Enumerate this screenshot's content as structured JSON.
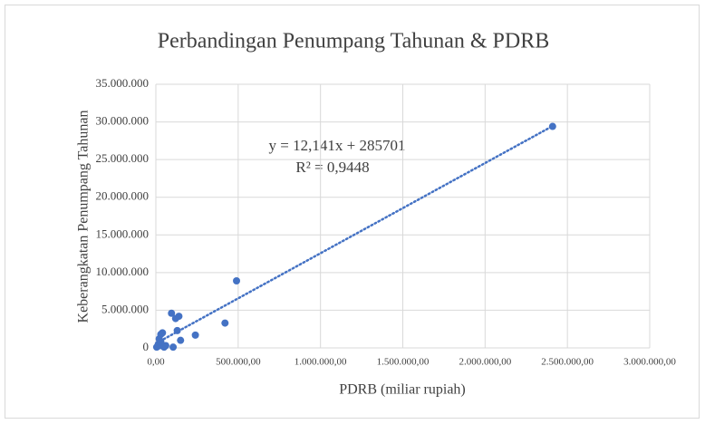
{
  "chart_data": {
    "type": "scatter",
    "title": "Perbandingan Penumpang Tahunan & PDRB",
    "x_label": "PDRB (miliar rupiah)",
    "y_label": "Keberangkatan Penumpang Tahunan",
    "color": "#4472c4",
    "grid": true,
    "trendline": {
      "equation": "y = 12,141x + 285701",
      "r_squared": "R² = 0,9448"
    },
    "xlim": [
      0,
      3000000
    ],
    "ylim": [
      0,
      35000000
    ],
    "xticks": [
      {
        "value": 0,
        "label": "0,00"
      },
      {
        "value": 500000,
        "label": "500.000,00"
      },
      {
        "value": 1000000,
        "label": "1.000.000,00"
      },
      {
        "value": 1500000,
        "label": "1.500.000,00"
      },
      {
        "value": 2000000,
        "label": "2.000.000,00"
      },
      {
        "value": 2500000,
        "label": "2.500.000,00"
      },
      {
        "value": 3000000,
        "label": "3.000.000,00"
      }
    ],
    "yticks": [
      0,
      {
        "value": 5000000,
        "label": "5.000.000"
      },
      {
        "value": 10000000,
        "label": "10.000.000"
      },
      {
        "value": 15000000,
        "label": "15.000.000"
      },
      {
        "value": 20000000,
        "label": "20.000.000"
      },
      {
        "value": 25000000,
        "label": "25.000.000"
      },
      {
        "value": 30000000,
        "label": "30.000.000"
      },
      {
        "value": 35000000,
        "label": "35.000.000"
      }
    ],
    "x": [
      2410000,
      490000,
      420000,
      240000,
      140000,
      95000,
      120000,
      130000,
      150000,
      105000,
      60000,
      40000,
      30000,
      20000,
      15000,
      10000,
      5000,
      25000,
      50000,
      30000
    ],
    "values": [
      29400000,
      8900000,
      3300000,
      1700000,
      4200000,
      4600000,
      3900000,
      2300000,
      1000000,
      100000,
      300000,
      2000000,
      1800000,
      1200000,
      500000,
      200000,
      100000,
      300000,
      100000,
      800000
    ]
  }
}
